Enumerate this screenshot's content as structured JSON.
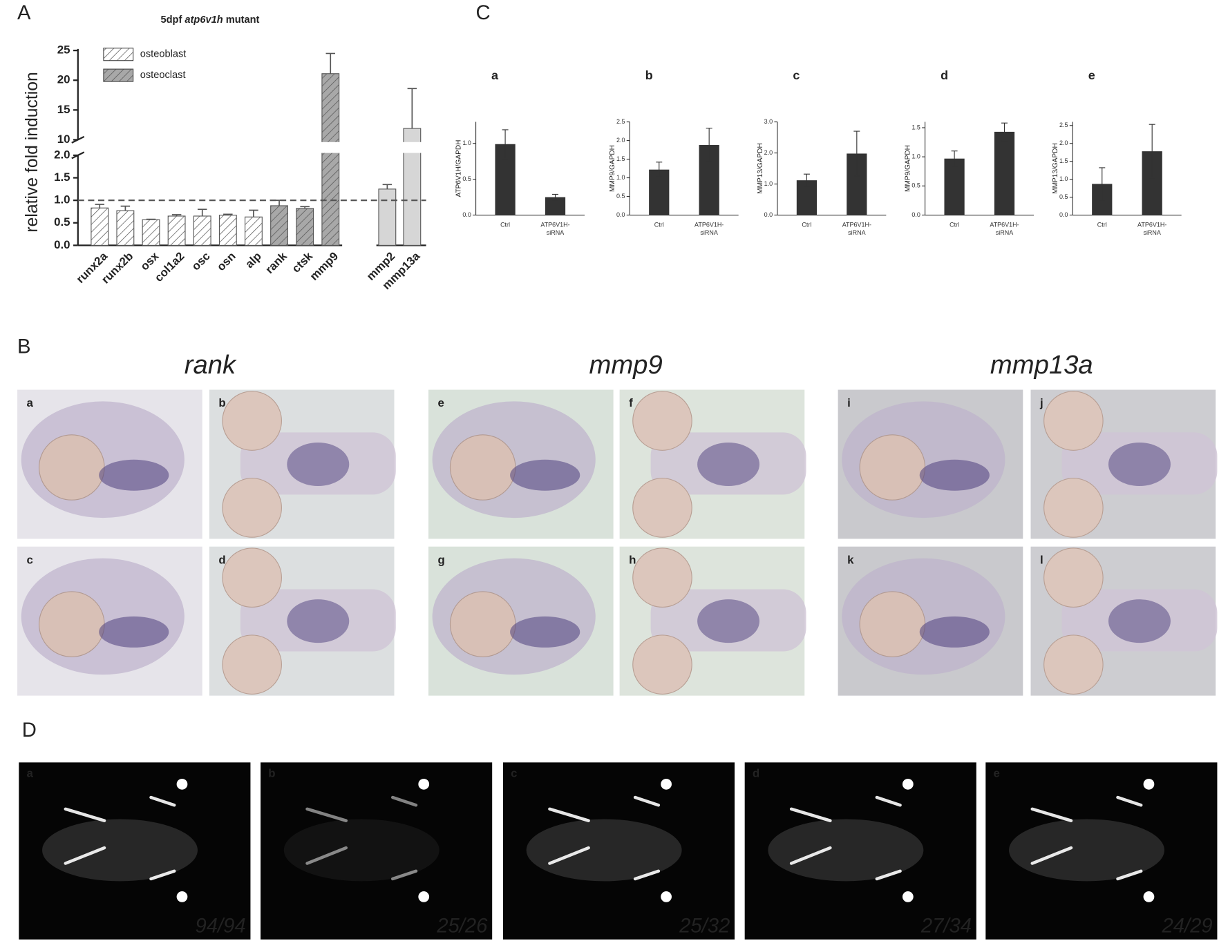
{
  "chart_data": [
    {
      "type": "bar",
      "title": [
        "5dpf",
        "atp6v1h",
        "mutant"
      ],
      "ylabel": "relative fold induction",
      "categories": [
        "runx2a",
        "runx2b",
        "osx",
        "col1a2",
        "osc",
        "osn",
        "alp",
        "rank",
        "ctsk",
        "mmp9",
        "mmp2",
        "mmp13a"
      ],
      "series": [
        {
          "name": "osteoblast",
          "color": "#ffffff",
          "hatch": true,
          "values": [
            0.83,
            0.77,
            0.57,
            0.65,
            0.65,
            0.67,
            0.63,
            null,
            null,
            null,
            null,
            null
          ],
          "errors": [
            0.08,
            0.1,
            0.01,
            0.03,
            0.15,
            0.02,
            0.15,
            null,
            null,
            null,
            null,
            null
          ]
        },
        {
          "name": "osteoclast",
          "color": "#a8a8a8",
          "hatch": true,
          "values": [
            null,
            null,
            null,
            null,
            null,
            null,
            null,
            0.88,
            0.82,
            21.1,
            null,
            null
          ],
          "errors": [
            null,
            null,
            null,
            null,
            null,
            null,
            null,
            0.12,
            0.04,
            3.4,
            null,
            null
          ]
        },
        {
          "color": "#d6d6d6",
          "hatch": false,
          "values": [
            null,
            null,
            null,
            null,
            null,
            null,
            null,
            null,
            null,
            null,
            1.25,
            11.9
          ],
          "errors": [
            null,
            null,
            null,
            null,
            null,
            null,
            null,
            null,
            null,
            null,
            0.1,
            6.7
          ]
        }
      ],
      "ylim": [
        0,
        25
      ],
      "axis_break": [
        2,
        10
      ],
      "yticks": [
        {
          "value": 0,
          "label": "0.0"
        },
        0.5,
        {
          "value": 1,
          "label": "1.0"
        },
        1.5,
        {
          "value": 2,
          "label": "2.0"
        },
        10,
        15,
        20,
        25
      ],
      "reference_line": 1
    },
    {
      "type": "bar",
      "title": "a",
      "ylabel": "ATP6V1H/GAPDH",
      "categories": [
        [
          "Ctrl"
        ],
        [
          "ATP6V1H-",
          "siRNA"
        ]
      ],
      "color": "#333333",
      "values": [
        0.99,
        0.25
      ],
      "errors": [
        0.2,
        0.04
      ],
      "ylim": [
        0,
        1.3
      ],
      "yticks": [
        {
          "value": 0,
          "label": "0.0"
        },
        0.5,
        {
          "value": 1,
          "label": "1.0"
        }
      ]
    },
    {
      "type": "bar",
      "title": "b",
      "ylabel": "MMP9/GAPDH",
      "categories": [
        [
          "Ctrl"
        ],
        [
          "ATP6V1H-",
          "siRNA"
        ]
      ],
      "color": "#333333",
      "values": [
        1.22,
        1.88
      ],
      "errors": [
        0.2,
        0.45
      ],
      "ylim": [
        0,
        2.5
      ],
      "yticks": [
        {
          "value": 0,
          "label": "0.0"
        },
        0.5,
        {
          "value": 1,
          "label": "1.0"
        },
        1.5,
        {
          "value": 2,
          "label": "2.0"
        },
        2.5
      ]
    },
    {
      "type": "bar",
      "title": "c",
      "ylabel": "MMP13/GAPDH",
      "categories": [
        [
          "Ctrl"
        ],
        [
          "ATP6V1H-",
          "siRNA"
        ]
      ],
      "color": "#333333",
      "values": [
        1.12,
        1.98
      ],
      "errors": [
        0.2,
        0.72
      ],
      "ylim": [
        0,
        3
      ],
      "yticks": [
        {
          "value": 0,
          "label": "0.0"
        },
        {
          "value": 1,
          "label": "1.0"
        },
        {
          "value": 2,
          "label": "2.0"
        },
        {
          "value": 3,
          "label": "3.0"
        }
      ]
    },
    {
      "type": "bar",
      "title": "d",
      "ylabel": "MMP9/GAPDH",
      "categories": [
        [
          "Ctrl"
        ],
        [
          "ATP6V1H-",
          "siRNA"
        ]
      ],
      "color": "#333333",
      "values": [
        0.97,
        1.43
      ],
      "errors": [
        0.13,
        0.15
      ],
      "ylim": [
        0,
        1.6
      ],
      "yticks": [
        {
          "value": 0,
          "label": "0.0"
        },
        0.5,
        {
          "value": 1,
          "label": "1.0"
        },
        1.5
      ]
    },
    {
      "type": "bar",
      "title": "e",
      "ylabel": "MMP13/GAPDH",
      "categories": [
        [
          "Ctrl"
        ],
        [
          "ATP6V1H-",
          "siRNA"
        ]
      ],
      "color": "#333333",
      "values": [
        0.87,
        1.78
      ],
      "errors": [
        0.45,
        0.75
      ],
      "ylim": [
        0,
        2.6
      ],
      "yticks": [
        {
          "value": 0,
          "label": "0.0"
        },
        0.5,
        {
          "value": 1,
          "label": "1.0"
        },
        1.5,
        {
          "value": 2,
          "label": "2.0"
        },
        2.5
      ]
    }
  ],
  "figure": {
    "panel_labels": [
      "A",
      "B",
      "C",
      "D"
    ],
    "B": {
      "titles": [
        "rank",
        "mmp9",
        "mmp13a"
      ],
      "images": [
        "a",
        "b",
        "c",
        "d",
        "e",
        "f",
        "g",
        "h",
        "i",
        "j",
        "k",
        "l"
      ]
    },
    "D": {
      "images": [
        "a",
        "b",
        "c",
        "d",
        "e"
      ],
      "counts": [
        "94/94",
        "25/26",
        "25/32",
        "27/34",
        "24/29"
      ]
    }
  }
}
